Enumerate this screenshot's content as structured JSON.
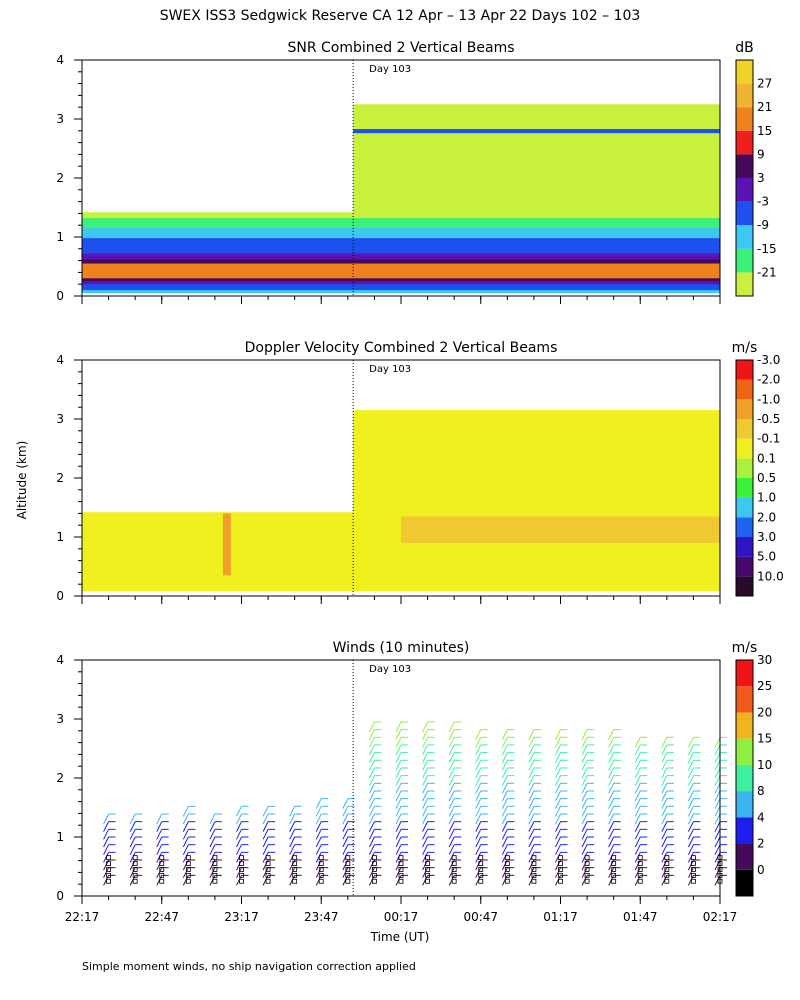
{
  "figure": {
    "title": "SWEX ISS3 Sedgwick Reserve CA  12 Apr – 13 Apr 22 Days 102 – 103",
    "ylabel": "Altitude (km)",
    "xlabel": "Time (UT)",
    "footnote": "Simple moment winds, no ship navigation correction applied",
    "day_marker_label": "Day 103",
    "day_marker_time": "23:59"
  },
  "chart_data": [
    {
      "type": "heatmap",
      "title": "SNR Combined 2 Vertical Beams",
      "xlabel": "Time (UT)",
      "ylabel": "Altitude (km)",
      "x_ticks": [
        "22:17",
        "22:47",
        "23:17",
        "23:47",
        "00:17",
        "00:47",
        "01:17",
        "01:47",
        "02:17"
      ],
      "y_ticks": [
        "0",
        "1",
        "2",
        "3",
        "4"
      ],
      "ylim": [
        0,
        4
      ],
      "colorbar": {
        "unit": "dB",
        "labels": [
          "-21",
          "-15",
          "-9",
          "-3",
          "3",
          "9",
          "15",
          "21",
          "27"
        ],
        "colors": [
          "#c8f03c",
          "#3cf078",
          "#3cc8f0",
          "#1e50f0",
          "#5a14b4",
          "#460a5a",
          "#f01e1e",
          "#f0821e",
          "#f0b432",
          "#f0d228"
        ]
      },
      "layers": [
        {
          "t_start": "22:17",
          "t_end": "23:59",
          "alt_range": [
            0.05,
            1.42
          ],
          "level": "-21"
        },
        {
          "t_start": "23:59",
          "t_end": "02:17",
          "alt_range": [
            0.05,
            3.25
          ],
          "level": "-21"
        },
        {
          "alt_range": [
            0.05,
            1.32
          ],
          "level": "-15"
        },
        {
          "alt_range": [
            0.05,
            1.15
          ],
          "level": "-9"
        },
        {
          "alt_range": [
            0.1,
            0.98
          ],
          "level": "-3"
        },
        {
          "alt_range": [
            0.2,
            0.72
          ],
          "level": "3"
        },
        {
          "alt_range": [
            0.25,
            0.62
          ],
          "level": "9"
        },
        {
          "alt_range": [
            0.3,
            0.55
          ],
          "level": "21"
        },
        {
          "t_start": "23:59",
          "t_end": "02:17",
          "alt_range": [
            2.76,
            2.83
          ],
          "level": "-3"
        }
      ]
    },
    {
      "type": "heatmap",
      "title": "Doppler Velocity Combined 2 Vertical Beams",
      "xlabel": "Time (UT)",
      "ylabel": "Altitude (km)",
      "x_ticks": [
        "22:17",
        "22:47",
        "23:17",
        "23:47",
        "00:17",
        "00:47",
        "01:17",
        "01:47",
        "02:17"
      ],
      "y_ticks": [
        "0",
        "1",
        "2",
        "3",
        "4"
      ],
      "ylim": [
        0,
        4
      ],
      "colorbar": {
        "unit": "m/s",
        "labels": [
          "10.0",
          "5.0",
          "3.0",
          "2.0",
          "1.0",
          "0.5",
          "0.1",
          "-0.1",
          "-0.5",
          "-1.0",
          "-2.0",
          "-3.0"
        ],
        "colors": [
          "#2a0a2a",
          "#460a6e",
          "#3214c8",
          "#1e64f0",
          "#3cc8f0",
          "#3cf03c",
          "#aaf03c",
          "#f0f01e",
          "#f0c832",
          "#f0a028",
          "#f06414",
          "#f01414"
        ]
      },
      "layers": [
        {
          "t_start": "22:17",
          "t_end": "23:59",
          "alt_range": [
            0.08,
            1.42
          ],
          "level": "-0.1"
        },
        {
          "t_start": "23:59",
          "t_end": "02:17",
          "alt_range": [
            0.08,
            3.15
          ],
          "level": "-0.1"
        },
        {
          "t_start": "00:17",
          "t_end": "02:17",
          "alt_range": [
            0.9,
            1.35
          ],
          "level": "-0.5"
        },
        {
          "t_start": "23:10",
          "t_end": "23:13",
          "alt_range": [
            0.35,
            1.4
          ],
          "level": "-1.0"
        }
      ]
    },
    {
      "type": "scatter",
      "title": "Winds (10 minutes)",
      "xlabel": "Time (UT)",
      "ylabel": "Altitude (km)",
      "x_ticks": [
        "22:17",
        "22:47",
        "23:17",
        "23:47",
        "00:17",
        "00:47",
        "01:17",
        "01:47",
        "02:17"
      ],
      "y_ticks": [
        "0",
        "1",
        "2",
        "3",
        "4"
      ],
      "ylim": [
        0,
        4
      ],
      "colorbar": {
        "unit": "m/s",
        "labels": [
          "0",
          "2",
          "4",
          "8",
          "10",
          "15",
          "20",
          "25",
          "30"
        ],
        "colors": [
          "#000000",
          "#460a5a",
          "#1e1ef0",
          "#3cb4f0",
          "#3cf0a0",
          "#8cf03c",
          "#f0b41e",
          "#f05a1e",
          "#f01414"
        ]
      },
      "profile_times": [
        "22:27",
        "22:37",
        "22:47",
        "22:57",
        "23:07",
        "23:17",
        "23:27",
        "23:37",
        "23:47",
        "23:57",
        "00:07",
        "00:17",
        "00:27",
        "00:37",
        "00:47",
        "00:57",
        "01:07",
        "01:17",
        "01:27",
        "01:37",
        "01:47",
        "01:57",
        "02:07",
        "02:17"
      ],
      "profile_top_km": [
        1.5,
        1.5,
        1.5,
        1.55,
        1.5,
        1.55,
        1.6,
        1.6,
        1.65,
        1.7,
        3.0,
        3.0,
        3.0,
        3.0,
        2.9,
        2.9,
        2.9,
        2.9,
        2.9,
        2.85,
        2.8,
        2.8,
        2.75,
        2.7
      ]
    }
  ]
}
